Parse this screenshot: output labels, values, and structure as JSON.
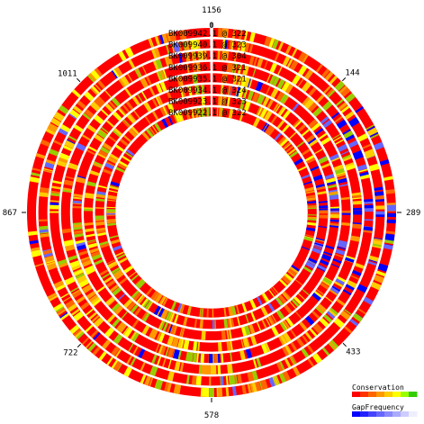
{
  "diagram": {
    "type": "circular-alignment",
    "total_length": 1156,
    "center_tick_label": "0",
    "ticks": [
      {
        "position": 0,
        "label": "1156"
      },
      {
        "position": 144,
        "label": "144"
      },
      {
        "position": 289,
        "label": "289"
      },
      {
        "position": 433,
        "label": "433"
      },
      {
        "position": 578,
        "label": "578"
      },
      {
        "position": 722,
        "label": "722"
      },
      {
        "position": 867,
        "label": "867"
      },
      {
        "position": 1011,
        "label": "1011"
      }
    ],
    "rings": [
      {
        "label": "BK009942.1 @ 322"
      },
      {
        "label": "BK009940.1 @ 323"
      },
      {
        "label": "BK009939.1 @ 304"
      },
      {
        "label": "BK009936.1 @ 321"
      },
      {
        "label": "BK009935.1 @ 321"
      },
      {
        "label": "BK009934.1 @ 324"
      },
      {
        "label": "BK009923.1 @ 323"
      },
      {
        "label": "BK009922.1 @ 322"
      }
    ],
    "legend": {
      "conservation_title": "Conservation",
      "gap_title": "GapFrequency",
      "conservation_colors": [
        "#ff0000",
        "#ff3300",
        "#ff6600",
        "#ff9900",
        "#ffcc00",
        "#ffff00",
        "#99ff00",
        "#33cc00"
      ],
      "gap_colors": [
        "#0000ff",
        "#2222ff",
        "#4444ff",
        "#6666ff",
        "#8888ff",
        "#aaaaff",
        "#ccccff",
        "#eeeeff"
      ]
    },
    "colors": {
      "base": "#ff0000",
      "accents": [
        "#ff6600",
        "#ff9900",
        "#ffcc00",
        "#ffff00",
        "#99cc00",
        "#0000ff",
        "#6666ff"
      ]
    }
  }
}
